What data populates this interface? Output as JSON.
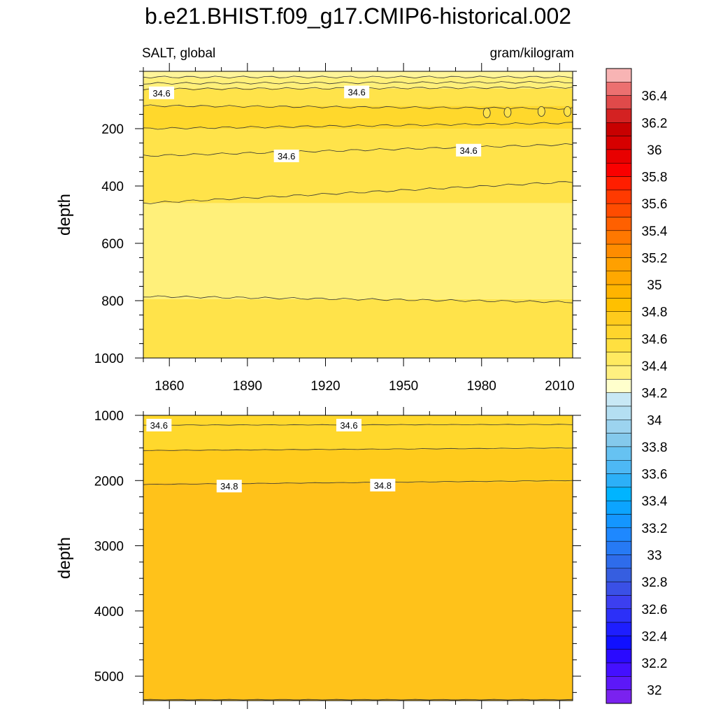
{
  "figure": {
    "title": "b.e21.BHIST.f09_g17.CMIP6-historical.002",
    "left_subtitle": "SALT, global",
    "right_subtitle": "gram/kilogram"
  },
  "chart_data": [
    {
      "type": "heatmap",
      "panel": "upper",
      "ylabel": "depth",
      "xlabel": "",
      "x_range": [
        1850,
        2015
      ],
      "y_range": [
        0,
        1000
      ],
      "y_inverted": true,
      "xticks": [
        1860,
        1890,
        1920,
        1950,
        1980,
        2010
      ],
      "yticks": [
        200,
        400,
        600,
        800,
        1000
      ],
      "contour_interval": 0.1,
      "contour_levels": [
        {
          "level": 34.3,
          "depth_start": 20,
          "depth_end": 20
        },
        {
          "level": 34.4,
          "depth_start": 42,
          "depth_end": 38
        },
        {
          "level": 34.5,
          "depth_start": 62,
          "depth_end": 56
        },
        {
          "level": 34.6,
          "depth_start": 120,
          "depth_end": 130
        },
        {
          "level": 34.6,
          "depth_start": 200,
          "depth_end": 180
        },
        {
          "level": 34.6,
          "depth_start": 295,
          "depth_end": 255
        },
        {
          "level": 34.5,
          "depth_start": 460,
          "depth_end": 385
        },
        {
          "level": 34.4,
          "depth_start": 785,
          "depth_end": 805
        }
      ],
      "labels": [
        {
          "text": "34.6",
          "x": 1857,
          "depth": 75
        },
        {
          "text": "34.6",
          "x": 1932,
          "depth": 72
        },
        {
          "text": "34.6",
          "x": 1905,
          "depth": 295
        },
        {
          "text": "34.6",
          "x": 1975,
          "depth": 275
        }
      ],
      "fills": [
        {
          "range": "34.3-34.4",
          "depth_top": 0,
          "depth_bottom": 20
        },
        {
          "range": "34.4-34.5",
          "depth_top": 20,
          "depth_bottom": 60
        },
        {
          "range": "34.5-34.6",
          "depth_top": 60,
          "depth_bottom": 120
        },
        {
          "range": "34.6-34.7",
          "depth_top": 120,
          "depth_bottom": 200
        },
        {
          "range": "34.5-34.6",
          "depth_top": 200,
          "depth_bottom": 460
        },
        {
          "range": "34.4-34.5",
          "depth_top": 460,
          "depth_bottom": 795
        },
        {
          "range": "34.5-34.6",
          "depth_top": 795,
          "depth_bottom": 1000
        }
      ]
    },
    {
      "type": "heatmap",
      "panel": "lower",
      "ylabel": "depth",
      "xlabel": "",
      "x_range": [
        1850,
        2015
      ],
      "y_range": [
        1000,
        5375
      ],
      "y_inverted": true,
      "xticks": [
        1860,
        1890,
        1920,
        1950,
        1980,
        2010
      ],
      "yticks": [
        1000,
        2000,
        3000,
        4000,
        5000
      ],
      "contour_levels": [
        {
          "level": 34.6,
          "depth_start": 1150,
          "depth_end": 1140
        },
        {
          "level": 34.7,
          "depth_start": 1540,
          "depth_end": 1500
        },
        {
          "level": 34.8,
          "depth_start": 2060,
          "depth_end": 2000
        },
        {
          "level": 34.8,
          "depth_start": 5360,
          "depth_end": 5360
        }
      ],
      "labels": [
        {
          "text": "34.6",
          "x": 1856,
          "depth": 1150
        },
        {
          "text": "34.6",
          "x": 1929,
          "depth": 1150
        },
        {
          "text": "34.8",
          "x": 1883,
          "depth": 2085
        },
        {
          "text": "34.8",
          "x": 1942,
          "depth": 2070
        }
      ],
      "fills": [
        {
          "range": "34.6-34.7",
          "depth_top": 1000,
          "depth_bottom": 1150
        },
        {
          "range": "34.6-34.7",
          "depth_top": 1150,
          "depth_bottom": 1520
        },
        {
          "range": "34.7-34.8",
          "depth_top": 1520,
          "depth_bottom": 2030
        },
        {
          "range": "34.8-34.9",
          "depth_top": 2030,
          "depth_bottom": 5375
        }
      ]
    }
  ],
  "colorbar": {
    "ticks": [
      "36.4",
      "36.2",
      "36",
      "35.8",
      "35.6",
      "35.4",
      "35.2",
      "35",
      "34.8",
      "34.6",
      "34.4",
      "34.2",
      "34",
      "33.8",
      "33.6",
      "33.4",
      "33.2",
      "33",
      "32.8",
      "32.6",
      "32.4",
      "32.2",
      "32"
    ],
    "colors_top_to_bottom": [
      "#f8b4b4",
      "#ec7070",
      "#e04a4a",
      "#d42222",
      "#c80000",
      "#d60000",
      "#e80000",
      "#fa0000",
      "#ff1e00",
      "#ff3a00",
      "#ff4c00",
      "#ff6000",
      "#ff7800",
      "#ff8c00",
      "#ffa000",
      "#ffa800",
      "#ffb400",
      "#ffc000",
      "#ffcb1c",
      "#ffd52c",
      "#ffe040",
      "#ffea60",
      "#fff080",
      "#ffffcc",
      "#c8e8f5",
      "#b4dff2",
      "#9cd3ef",
      "#84c9ec",
      "#66c2f2",
      "#4db8f5",
      "#2cb0f8",
      "#00b4ff",
      "#0ca4ff",
      "#1496ff",
      "#1e88ff",
      "#267af5",
      "#2e6ceb",
      "#365ee0",
      "#3a50e6",
      "#3c3ff0",
      "#2c30f8",
      "#1e1eff",
      "#1010ff",
      "#2a0aff",
      "#4410ff",
      "#5c18f8",
      "#7a22ef"
    ]
  }
}
